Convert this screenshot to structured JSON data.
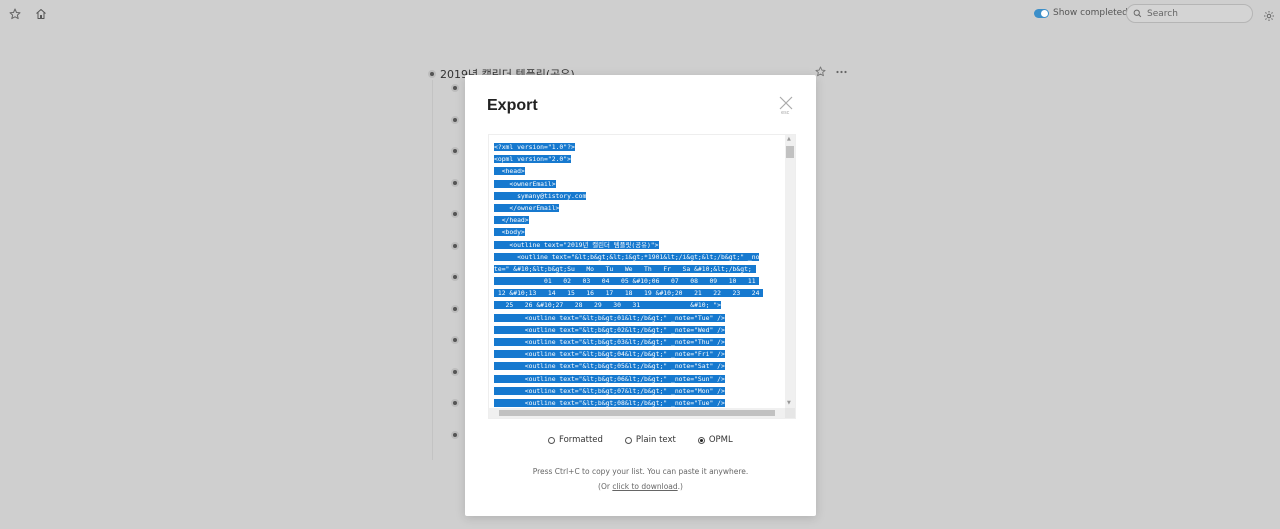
{
  "topbar": {
    "icons": [
      "star-icon",
      "home-icon",
      "search-icon",
      "gear-icon"
    ],
    "show_completed_label": "Show completed",
    "show_completed_on": true,
    "search_placeholder": "Search"
  },
  "document": {
    "title": "2019년 캘린더 템플릿(공유)",
    "child_bullet_count": 12
  },
  "export_dialog": {
    "title": "Export",
    "close_hint": "esc",
    "code_lines": [
      "<?xml version=\"1.0\"?>",
      "<opml version=\"2.0\">",
      "  <head>",
      "    <ownerEmail>",
      "      symany@tistory.com",
      "    </ownerEmail>",
      "  </head>",
      "  <body>",
      "    <outline text=\"2019년 캘린더 템플릿(공유)\">",
      "      <outline text=\"&lt;b&gt;&lt;i&gt;*1901&lt;/i&gt;&lt;/b&gt;\" _no",
      "te=\" &#10;&lt;b&gt;Su   Mo   Tu   We   Th   Fr   Sa &#10;&lt;/b&gt; ",
      "             01   02   03   04   05 &#10;06   07   08   09   10   11 ",
      " 12 &#10;13   14   15   16   17   18   19 &#10;20   21   22   23   24 ",
      "   25   26 &#10;27   28   29   30   31             &#10; \">",
      "        <outline text=\"&lt;b&gt;01&lt;/b&gt;\" _note=\"Tue\" />",
      "        <outline text=\"&lt;b&gt;02&lt;/b&gt;\" _note=\"Wed\" />",
      "        <outline text=\"&lt;b&gt;03&lt;/b&gt;\" _note=\"Thu\" />",
      "        <outline text=\"&lt;b&gt;04&lt;/b&gt;\" _note=\"Fri\" />",
      "        <outline text=\"&lt;b&gt;05&lt;/b&gt;\" _note=\"Sat\" />",
      "        <outline text=\"&lt;b&gt;06&lt;/b&gt;\" _note=\"Sun\" />",
      "        <outline text=\"&lt;b&gt;07&lt;/b&gt;\" _note=\"Mon\" />",
      "        <outline text=\"&lt;b&gt;08&lt;/b&gt;\" _note=\"Tue\" />"
    ],
    "formats": [
      {
        "label": "Formatted",
        "selected": false
      },
      {
        "label": "Plain text",
        "selected": false
      },
      {
        "label": "OPML",
        "selected": true
      }
    ],
    "hint_line1": "Press Ctrl+C to copy your list. You can paste it anywhere.",
    "hint_line2_prefix": "(Or ",
    "hint_line2_link": "click to download",
    "hint_line2_suffix": ".)"
  },
  "colors": {
    "selection": "#1679cf",
    "toggle_on": "#3c8fc9",
    "overlay_bg": "#cfcfcf"
  }
}
